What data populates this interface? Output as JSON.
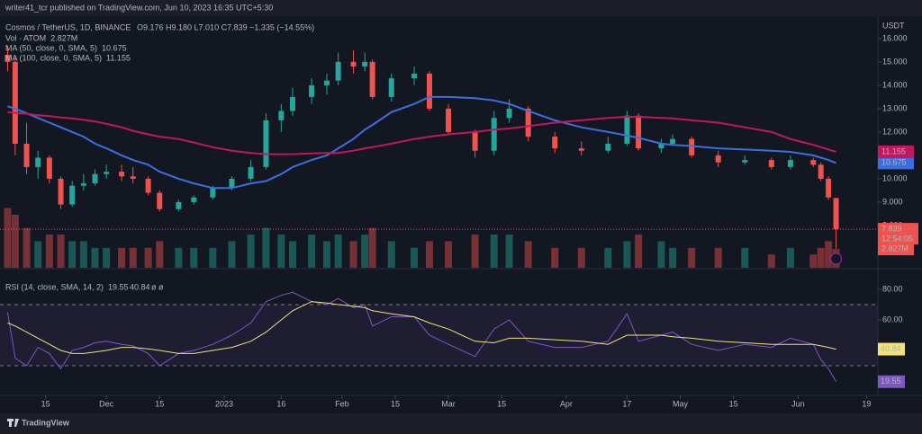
{
  "header": {
    "publisher": "writer41_tcr published on TradingView.com, Jun 10, 2023 16:35 UTC+5:30",
    "brand": "TradingView"
  },
  "chart_data": [
    {
      "type": "candlestick",
      "title": "Cosmos / TetherUS, 1D, BINANCE",
      "ohlc_text": "O9.176 H9.180 L7.010 C7.839 −1.335 (−14.55%)",
      "currency": "USDT",
      "countdown": "12:54:05",
      "up_color": "#26a69a",
      "down_color": "#ef5350",
      "x": [
        4,
        6,
        9,
        12,
        15,
        18,
        21,
        24,
        27,
        30,
        34,
        37,
        41,
        44,
        49,
        53,
        58,
        63,
        68,
        72,
        76,
        79,
        84,
        88,
        91,
        95,
        98,
        100,
        105,
        111,
        115,
        120,
        127,
        132,
        136,
        141,
        148,
        155,
        162,
        167,
        170,
        176,
        179,
        184,
        191,
        198,
        205,
        210,
        216,
        218,
        220,
        222
      ],
      "xlim": [
        2,
        233
      ],
      "ylim": [
        6.19,
        16.88
      ],
      "yticks": [
        {
          "value": 16,
          "label": "16.000"
        },
        {
          "value": 15,
          "label": "15.000"
        },
        {
          "value": 14,
          "label": "14.000"
        },
        {
          "value": 13,
          "label": "13.000"
        },
        {
          "value": 12,
          "label": "12.000"
        },
        {
          "value": 11,
          "label": "11.000"
        },
        {
          "value": 10,
          "label": "10.000"
        },
        {
          "value": 9,
          "label": "9.000"
        },
        {
          "value": 8,
          "label": "8.000"
        }
      ],
      "open": [
        15.3,
        15.0,
        11.5,
        10.5,
        10.9,
        10.0,
        8.9,
        9.7,
        9.8,
        10.2,
        10.3,
        10.1,
        10.0,
        9.4,
        8.7,
        9.0,
        9.2,
        9.6,
        10.0,
        10.5,
        12.5,
        12.9,
        13.5,
        14.0,
        14.2,
        15.0,
        14.8,
        15.0,
        13.5,
        14.3,
        14.5,
        13.0,
        12.0,
        11.2,
        12.6,
        13.0,
        11.8,
        11.3,
        11.2,
        11.5,
        12.7,
        11.3,
        11.5,
        11.7,
        11.0,
        10.7,
        10.8,
        10.5,
        10.8,
        10.6,
        10.0,
        9.176
      ],
      "high": [
        15.7,
        15.2,
        12.4,
        11.2,
        11.0,
        10.1,
        9.9,
        10.2,
        10.4,
        10.6,
        10.6,
        10.5,
        10.1,
        9.5,
        9.1,
        9.3,
        9.7,
        10.1,
        10.8,
        12.8,
        13.2,
        13.9,
        14.3,
        14.5,
        15.4,
        15.5,
        15.4,
        15.1,
        14.5,
        14.8,
        14.6,
        13.2,
        12.1,
        12.9,
        13.4,
        13.1,
        12.0,
        11.6,
        11.8,
        12.9,
        12.8,
        11.7,
        11.9,
        11.8,
        11.2,
        11.0,
        10.9,
        11.0,
        10.9,
        10.7,
        10.1,
        9.18
      ],
      "low": [
        14.6,
        11.0,
        10.2,
        10.0,
        9.8,
        8.7,
        8.8,
        9.5,
        9.7,
        10.0,
        9.9,
        9.8,
        9.3,
        8.6,
        8.6,
        8.9,
        9.1,
        9.5,
        9.9,
        10.4,
        12.0,
        12.7,
        13.2,
        13.6,
        14.0,
        14.5,
        14.6,
        13.4,
        13.3,
        14.0,
        12.9,
        11.9,
        10.9,
        11.0,
        12.4,
        11.6,
        11.1,
        11.0,
        11.1,
        11.4,
        11.2,
        11.1,
        11.4,
        10.9,
        10.5,
        10.6,
        10.4,
        10.4,
        10.5,
        9.9,
        9.1,
        7.01
      ],
      "close": [
        15.0,
        11.5,
        10.5,
        10.9,
        10.0,
        8.9,
        9.7,
        9.8,
        10.2,
        10.3,
        10.1,
        10.0,
        9.4,
        8.7,
        9.0,
        9.2,
        9.6,
        10.0,
        10.5,
        12.5,
        12.9,
        13.5,
        14.0,
        14.2,
        15.0,
        14.8,
        15.0,
        13.5,
        14.3,
        14.5,
        13.0,
        12.0,
        11.2,
        12.6,
        13.0,
        11.8,
        11.3,
        11.2,
        11.5,
        12.7,
        11.3,
        11.5,
        11.7,
        11.0,
        10.7,
        10.8,
        10.5,
        10.8,
        10.6,
        10.0,
        9.2,
        7.839
      ],
      "y2lim": [
        0,
        37.6
      ],
      "series": [
        {
          "name": "Vol · ATOM",
          "axis": "y2",
          "last_label": "2.827M",
          "values": [
            9,
            8,
            6,
            4,
            5,
            5,
            4,
            4,
            3,
            3,
            3,
            3,
            3,
            4,
            3,
            3,
            3,
            4,
            5,
            6,
            5,
            4,
            5,
            4,
            5,
            4,
            5,
            6,
            4,
            3,
            4,
            4,
            5,
            5,
            5,
            4,
            3,
            3,
            3,
            4,
            5,
            4,
            3,
            3,
            3,
            3,
            2,
            3,
            2,
            3,
            4,
            2.827
          ]
        },
        {
          "name": "MA (50, close, 0, SMA, 5)",
          "color": "#3d6ee0",
          "values": [
            13.1,
            13.0,
            12.8,
            12.6,
            12.4,
            12.2,
            12.0,
            11.8,
            11.5,
            11.3,
            11.0,
            10.8,
            10.6,
            10.3,
            10.0,
            9.8,
            9.6,
            9.6,
            9.8,
            9.9,
            10.2,
            10.5,
            10.8,
            11.0,
            11.3,
            11.7,
            12.1,
            12.3,
            12.85,
            13.2,
            13.5,
            13.5,
            13.45,
            13.35,
            13.2,
            12.9,
            12.5,
            12.2,
            12.0,
            11.85,
            11.75,
            11.5,
            11.45,
            11.4,
            11.3,
            11.25,
            11.2,
            11.15,
            11.0,
            10.9,
            10.8,
            10.675
          ]
        },
        {
          "name": "MA (100, close, 0, SMA, 5)",
          "color": "#c2185b",
          "values": [
            12.85,
            12.82,
            12.78,
            12.72,
            12.68,
            12.62,
            12.58,
            12.52,
            12.45,
            12.35,
            12.2,
            12.05,
            11.9,
            11.8,
            11.7,
            11.55,
            11.35,
            11.2,
            11.1,
            11.05,
            11.05,
            11.05,
            11.08,
            11.1,
            11.1,
            11.2,
            11.3,
            11.35,
            11.5,
            11.7,
            11.8,
            11.9,
            12.0,
            12.1,
            12.15,
            12.25,
            12.4,
            12.5,
            12.6,
            12.65,
            12.65,
            12.6,
            12.58,
            12.5,
            12.4,
            12.2,
            12.0,
            11.7,
            11.45,
            11.35,
            11.25,
            11.155
          ]
        }
      ]
    },
    {
      "type": "line",
      "title": "RSI (14, close, SMA, 14, 2)",
      "extra_text": "ø ø",
      "x": [
        4,
        6,
        9,
        12,
        15,
        18,
        21,
        24,
        27,
        30,
        34,
        37,
        41,
        44,
        49,
        53,
        58,
        63,
        68,
        72,
        76,
        79,
        84,
        88,
        91,
        95,
        98,
        100,
        105,
        111,
        115,
        120,
        127,
        132,
        136,
        141,
        148,
        155,
        162,
        167,
        170,
        176,
        179,
        184,
        191,
        198,
        205,
        210,
        216,
        218,
        220,
        222
      ],
      "xlim": [
        2,
        233
      ],
      "xticks": [
        {
          "value": 14,
          "label": "15"
        },
        {
          "value": 30,
          "label": "Dec"
        },
        {
          "value": 44,
          "label": "15"
        },
        {
          "value": 61,
          "label": "2023"
        },
        {
          "value": 76,
          "label": "16"
        },
        {
          "value": 92,
          "label": "Feb"
        },
        {
          "value": 106,
          "label": "15"
        },
        {
          "value": 120,
          "label": "Mar"
        },
        {
          "value": 134,
          "label": "15"
        },
        {
          "value": 151,
          "label": "Apr"
        },
        {
          "value": 167,
          "label": "17"
        },
        {
          "value": 181,
          "label": "May"
        },
        {
          "value": 195,
          "label": "15"
        },
        {
          "value": 212,
          "label": "Jun"
        },
        {
          "value": 230,
          "label": "19"
        }
      ],
      "ylim": [
        10.6,
        92.9
      ],
      "yticks": [
        {
          "value": 80,
          "label": "80.00"
        },
        {
          "value": 60,
          "label": "60.00"
        }
      ],
      "bands": [
        30,
        70
      ],
      "series": [
        {
          "color": "#7e57c2",
          "values": [
            65,
            35,
            30,
            42,
            38,
            28,
            40,
            42,
            45,
            46,
            44,
            43,
            38,
            30,
            38,
            40,
            44,
            50,
            58,
            72,
            76,
            78,
            72,
            70,
            74,
            68,
            70,
            56,
            62,
            62,
            50,
            44,
            36,
            54,
            60,
            46,
            42,
            42,
            46,
            64,
            46,
            50,
            52,
            44,
            40,
            44,
            42,
            48,
            44,
            34,
            28,
            19.55
          ]
        },
        {
          "color": "#f0e27c",
          "values": [
            58,
            56,
            52,
            48,
            44,
            40,
            38,
            38,
            39,
            40,
            42,
            42,
            41,
            40,
            38,
            38,
            40,
            42,
            46,
            52,
            60,
            66,
            72,
            71,
            70,
            69,
            68,
            66,
            64,
            62,
            58,
            54,
            46,
            45,
            48,
            48,
            47,
            46,
            44,
            50,
            50,
            50,
            49,
            48,
            46,
            45,
            44,
            44,
            44,
            43,
            42,
            40.84
          ]
        }
      ]
    }
  ]
}
